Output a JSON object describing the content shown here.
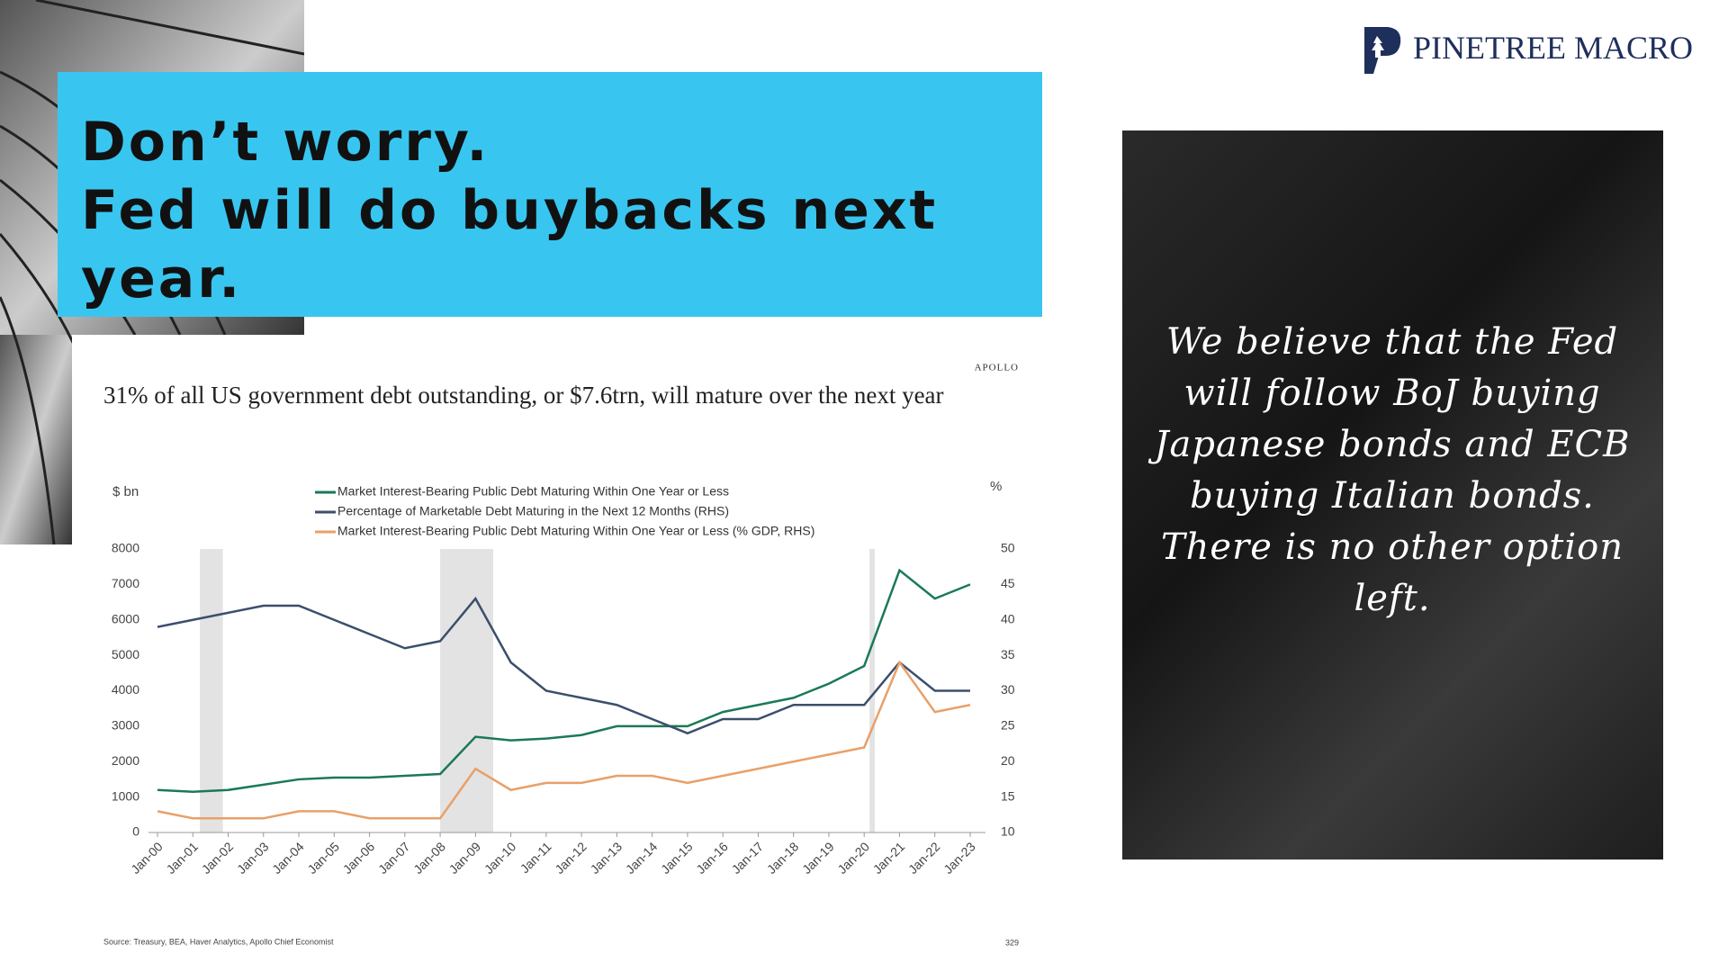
{
  "slide": {
    "title_lines": [
      "Don’t worry.",
      "Fed will do buybacks next",
      "year."
    ],
    "logo": "PINETREE MACRO",
    "quote": "We believe that the Fed will follow BoJ buying Japanese bonds and ECB buying Italian bonds. There is no other option left."
  },
  "chart_data": {
    "type": "line",
    "brand": "APOLLO",
    "title": "31% of all US government debt outstanding, or $7.6trn, will mature over the next year",
    "ylabel": "$ bn",
    "y2label": "%",
    "source": "Source: Treasury, BEA, Haver Analytics, Apollo Chief Economist",
    "page_number": "329",
    "categories": [
      "Jan-00",
      "Jan-01",
      "Jan-02",
      "Jan-03",
      "Jan-04",
      "Jan-05",
      "Jan-06",
      "Jan-07",
      "Jan-08",
      "Jan-09",
      "Jan-10",
      "Jan-11",
      "Jan-12",
      "Jan-13",
      "Jan-14",
      "Jan-15",
      "Jan-16",
      "Jan-17",
      "Jan-18",
      "Jan-19",
      "Jan-20",
      "Jan-21",
      "Jan-22",
      "Jan-23"
    ],
    "series": [
      {
        "name": "Market Interest-Bearing Public Debt Maturing Within One Year or Less",
        "color": "#1a7a55",
        "axis": "y",
        "values": [
          1200,
          1150,
          1200,
          1350,
          1500,
          1550,
          1550,
          1600,
          1650,
          2700,
          2600,
          2650,
          2750,
          3000,
          3000,
          3000,
          3400,
          3600,
          3800,
          4200,
          4700,
          7400,
          6600,
          7000
        ]
      },
      {
        "name": "Percentage of Marketable Debt Maturing in the Next 12 Months (RHS)",
        "color": "#3b4f6b",
        "axis": "y2",
        "values": [
          39,
          40,
          41,
          42,
          42,
          40,
          38,
          36,
          37,
          43,
          34,
          30,
          29,
          28,
          26,
          24,
          26,
          26,
          28,
          28,
          28,
          34,
          30,
          30
        ]
      },
      {
        "name": "Market Interest-Bearing Public Debt Maturing Within One Year or Less (% GDP, RHS)",
        "color": "#e8a06a",
        "axis": "y2",
        "values": [
          13,
          12,
          12,
          12,
          13,
          13,
          12,
          12,
          12,
          19,
          16,
          17,
          17,
          18,
          18,
          17,
          18,
          19,
          20,
          21,
          22,
          34,
          27,
          28
        ]
      }
    ],
    "recessions": [
      {
        "start": 1.2,
        "end": 1.85
      },
      {
        "start": 8.0,
        "end": 9.5
      },
      {
        "start": 20.15,
        "end": 20.3
      }
    ],
    "ylim": [
      0,
      8000
    ],
    "yticks": [
      0,
      1000,
      2000,
      3000,
      4000,
      5000,
      6000,
      7000,
      8000
    ],
    "y2lim": [
      10,
      50
    ],
    "y2ticks": [
      10,
      15,
      20,
      25,
      30,
      35,
      40,
      45,
      50
    ]
  }
}
